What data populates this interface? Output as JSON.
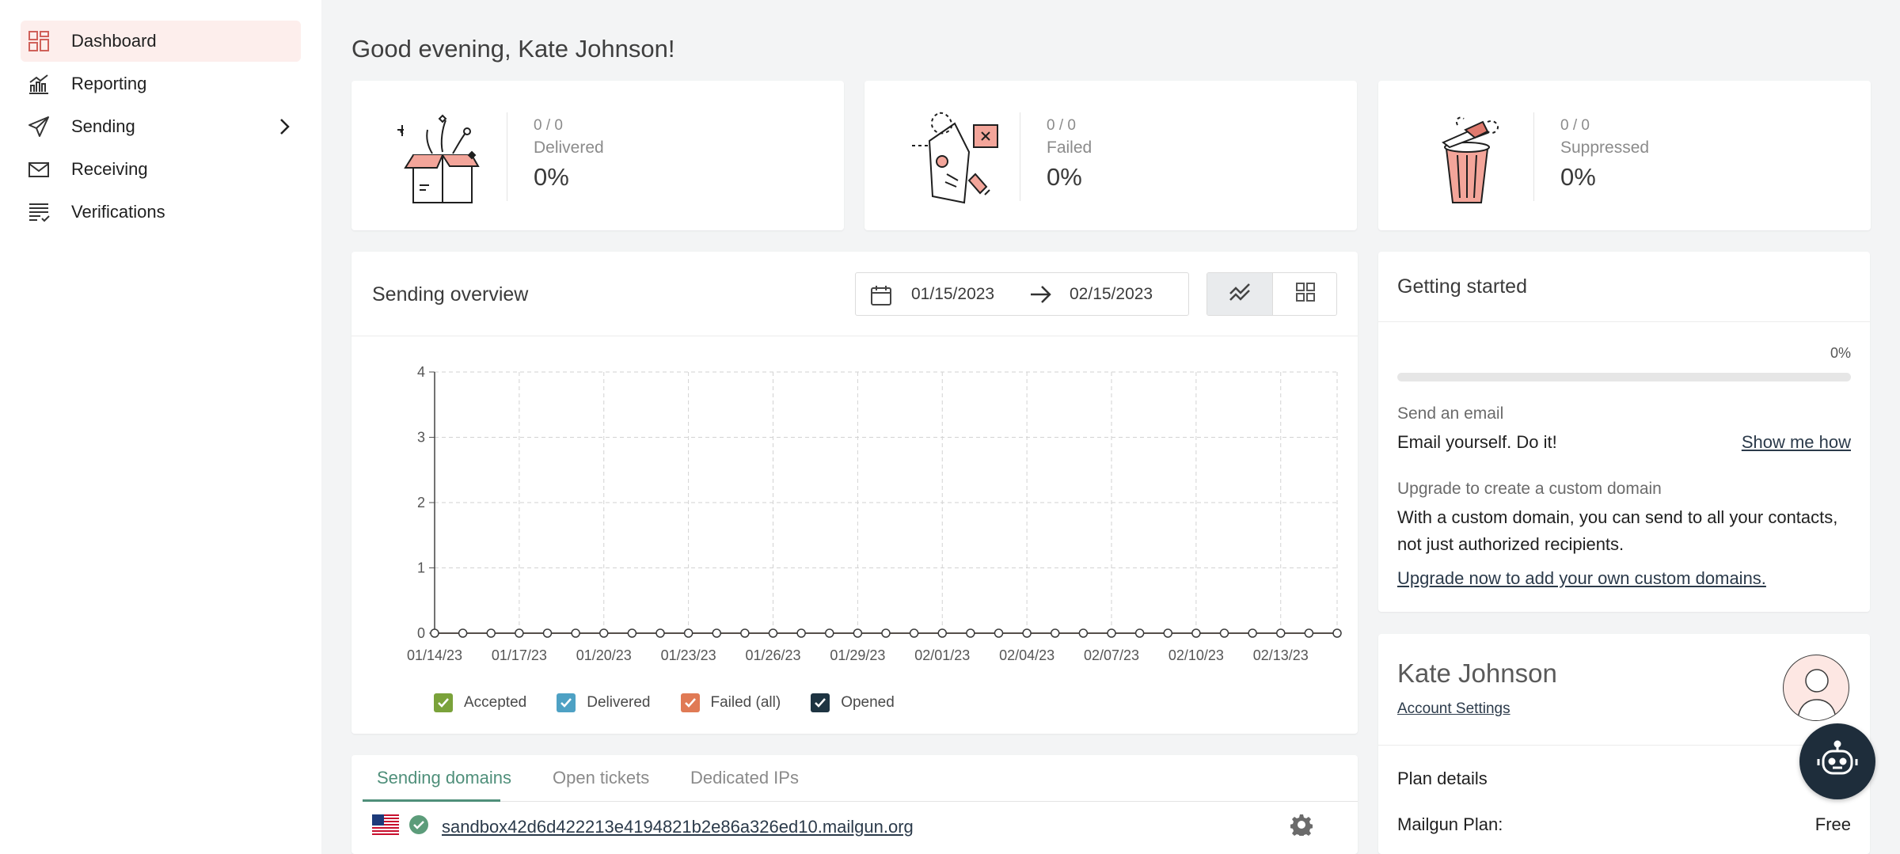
{
  "sidebar": {
    "items": [
      {
        "label": "Dashboard",
        "icon": "dashboard-icon",
        "active": true
      },
      {
        "label": "Reporting",
        "icon": "bar-chart-icon"
      },
      {
        "label": "Sending",
        "icon": "send-icon",
        "has_submenu": true
      },
      {
        "label": "Receiving",
        "icon": "envelope-icon"
      },
      {
        "label": "Verifications",
        "icon": "list-check-icon"
      }
    ]
  },
  "greeting": "Good evening, Kate Johnson!",
  "stats": [
    {
      "ratio": "0 / 0",
      "label": "Delivered",
      "pct": "0%",
      "icon": "open-box-illustration"
    },
    {
      "ratio": "0 / 0",
      "label": "Failed",
      "pct": "0%",
      "icon": "failed-letter-illustration"
    },
    {
      "ratio": "0 / 0",
      "label": "Suppressed",
      "pct": "0%",
      "icon": "trash-can-illustration"
    }
  ],
  "overview": {
    "title": "Sending overview",
    "date_from": "01/15/2023",
    "date_to": "02/15/2023"
  },
  "chart_data": {
    "type": "line",
    "x": [
      "01/14/23",
      "01/15/23",
      "01/16/23",
      "01/17/23",
      "01/18/23",
      "01/19/23",
      "01/20/23",
      "01/21/23",
      "01/22/23",
      "01/23/23",
      "01/24/23",
      "01/25/23",
      "01/26/23",
      "01/27/23",
      "01/28/23",
      "01/29/23",
      "01/30/23",
      "01/31/23",
      "02/01/23",
      "02/02/23",
      "02/03/23",
      "02/04/23",
      "02/05/23",
      "02/06/23",
      "02/07/23",
      "02/08/23",
      "02/09/23",
      "02/10/23",
      "02/11/23",
      "02/12/23",
      "02/13/23",
      "02/14/23",
      "02/15/23"
    ],
    "x_tick_labels": [
      "01/14/23",
      "01/17/23",
      "01/20/23",
      "01/23/23",
      "01/26/23",
      "01/29/23",
      "02/01/23",
      "02/04/23",
      "02/07/23",
      "02/10/23",
      "02/13/23"
    ],
    "y_ticks": [
      0,
      1,
      2,
      3,
      4
    ],
    "ylim": [
      0,
      4
    ],
    "grid": true,
    "series": [
      {
        "name": "Accepted",
        "color": "#7aa23a",
        "values": [
          0,
          0,
          0,
          0,
          0,
          0,
          0,
          0,
          0,
          0,
          0,
          0,
          0,
          0,
          0,
          0,
          0,
          0,
          0,
          0,
          0,
          0,
          0,
          0,
          0,
          0,
          0,
          0,
          0,
          0,
          0,
          0,
          0
        ]
      },
      {
        "name": "Delivered",
        "color": "#4ea1c4",
        "values": [
          0,
          0,
          0,
          0,
          0,
          0,
          0,
          0,
          0,
          0,
          0,
          0,
          0,
          0,
          0,
          0,
          0,
          0,
          0,
          0,
          0,
          0,
          0,
          0,
          0,
          0,
          0,
          0,
          0,
          0,
          0,
          0,
          0
        ]
      },
      {
        "name": "Failed (all)",
        "color": "#e07a55",
        "values": [
          0,
          0,
          0,
          0,
          0,
          0,
          0,
          0,
          0,
          0,
          0,
          0,
          0,
          0,
          0,
          0,
          0,
          0,
          0,
          0,
          0,
          0,
          0,
          0,
          0,
          0,
          0,
          0,
          0,
          0,
          0,
          0,
          0
        ]
      },
      {
        "name": "Opened",
        "color": "#1e3442",
        "values": [
          0,
          0,
          0,
          0,
          0,
          0,
          0,
          0,
          0,
          0,
          0,
          0,
          0,
          0,
          0,
          0,
          0,
          0,
          0,
          0,
          0,
          0,
          0,
          0,
          0,
          0,
          0,
          0,
          0,
          0,
          0,
          0,
          0
        ]
      }
    ]
  },
  "domains": {
    "tabs": [
      "Sending domains",
      "Open tickets",
      "Dedicated IPs"
    ],
    "active_tab": 0,
    "rows": [
      {
        "name": "sandbox42d6d422213e4194821b2e86a326ed10.mailgun.org",
        "flag": "us-flag-icon",
        "status": "verified"
      }
    ]
  },
  "getting_started": {
    "title": "Getting started",
    "progress_label": "0%",
    "progress": 0,
    "step1_heading": "Send an email",
    "step1_text": "Email yourself. Do it!",
    "step1_link": "Show me how",
    "step2_heading": "Upgrade to create a custom domain",
    "step2_text_line1": "With a custom domain, you can send to all your contacts,",
    "step2_text_line2": "not just authorized recipients.",
    "step2_link": "Upgrade now to add your own custom domains."
  },
  "account": {
    "name": "Kate Johnson",
    "settings_link": "Account Settings",
    "plan_heading": "Plan details",
    "plan_label": "Mailgun Plan:",
    "plan_value": "Free"
  },
  "colors": {
    "accent": "#4f8f7a",
    "nav_active_bg": "#fdeeec",
    "illustration_pink": "#f3a59a",
    "bot_bg": "#1e2d3b"
  }
}
